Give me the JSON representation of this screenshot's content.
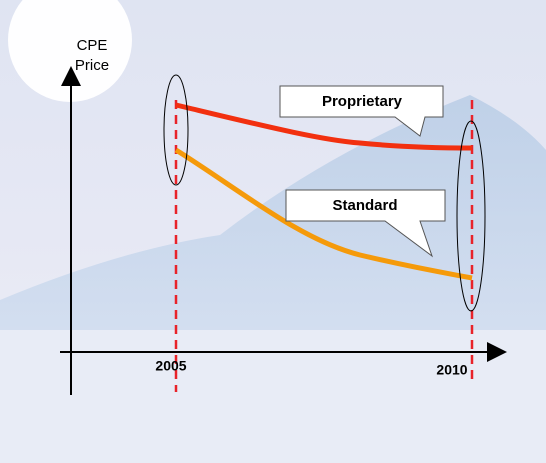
{
  "axis": {
    "y_label": [
      "CPE",
      "Price"
    ],
    "x_labels": [
      "2005",
      "2010"
    ]
  },
  "callouts": [
    {
      "label": "Proprietary"
    },
    {
      "label": "Standard"
    }
  ]
}
